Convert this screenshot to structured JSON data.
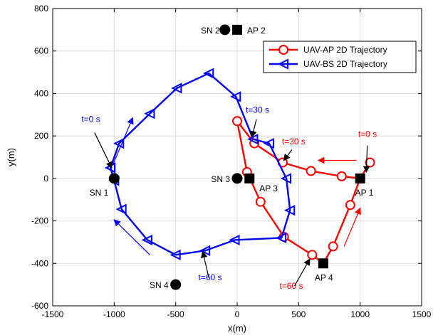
{
  "chart_data": {
    "type": "line",
    "title": "",
    "xlabel": "x(m)",
    "ylabel": "y(m)",
    "xlim": [
      -1500,
      1500
    ],
    "ylim": [
      -600,
      800
    ],
    "xticks": [
      -1500,
      -1000,
      -500,
      0,
      500,
      1000,
      1500
    ],
    "yticks": [
      -600,
      -400,
      -200,
      0,
      200,
      400,
      600,
      800
    ],
    "grid": true,
    "legend_position": "top-right",
    "series": [
      {
        "name": "UAV-AP 2D Trajectory",
        "color": "#ff0000",
        "marker": "circle",
        "x": [
          1000,
          1080,
          1000,
          850,
          600,
          370,
          140,
          0,
          80,
          190,
          380,
          610,
          700,
          780,
          920,
          1000
        ],
        "y": [
          0,
          75,
          0,
          10,
          35,
          75,
          165,
          270,
          30,
          -110,
          -275,
          -360,
          -400,
          -320,
          -125,
          0
        ]
      },
      {
        "name": "UAV-BS 2D Trajectory",
        "color": "#0000ff",
        "marker": "left-triangle",
        "x": [
          -1030,
          -960,
          -710,
          -490,
          -230,
          -10,
          130,
          260,
          400,
          430,
          360,
          -20,
          -260,
          -500,
          -730,
          -940,
          -1000,
          -1030
        ],
        "y": [
          50,
          165,
          305,
          425,
          495,
          385,
          185,
          165,
          0,
          -150,
          -280,
          -290,
          -340,
          -360,
          -290,
          -145,
          -10,
          50
        ]
      }
    ],
    "points": [
      {
        "label": "SN 1",
        "x": -1000,
        "y": 0
      },
      {
        "label": "SN 2",
        "x": -100,
        "y": 700
      },
      {
        "label": "SN 3",
        "x": 0,
        "y": 0
      },
      {
        "label": "SN 4",
        "x": -500,
        "y": -500
      }
    ],
    "access_points": [
      {
        "label": "AP 1",
        "x": 1000,
        "y": 0
      },
      {
        "label": "AP 2",
        "x": 0,
        "y": 700
      },
      {
        "label": "AP 3",
        "x": 100,
        "y": 0
      },
      {
        "label": "AP 4",
        "x": 700,
        "y": -400
      }
    ],
    "annotations": [
      {
        "text": "t=0 s",
        "color": "#ff0000",
        "x": 1060,
        "y": 195,
        "tx": 1050,
        "ty": 30
      },
      {
        "text": "t=30 s",
        "color": "#ff0000",
        "x": 460,
        "y": 160,
        "tx": 380,
        "ty": 85
      },
      {
        "text": "t=60 s",
        "color": "#ff0000",
        "x": 440,
        "y": -520,
        "tx": 590,
        "ty": -380
      },
      {
        "text": "t=0 s",
        "color": "#0000ff",
        "x": -1190,
        "y": 265,
        "tx": -1020,
        "ty": 50
      },
      {
        "text": "t=30 s",
        "color": "#0000ff",
        "x": 165,
        "y": 310,
        "tx": 120,
        "ty": 195
      },
      {
        "text": "t=60 s",
        "color": "#0000ff",
        "x": -220,
        "y": -480,
        "tx": -280,
        "ty": -345
      }
    ],
    "direction_arrows": [
      {
        "color": "#0000ff",
        "x1": -1010,
        "y1": 65,
        "x2": -850,
        "y2": 285
      },
      {
        "color": "#0000ff",
        "x1": -710,
        "y1": -360,
        "x2": -1000,
        "y2": -195
      },
      {
        "color": "#ff0000",
        "x1": 970,
        "y1": 85,
        "x2": 660,
        "y2": 85
      },
      {
        "color": "#ff0000",
        "x1": 870,
        "y1": -320,
        "x2": 1000,
        "y2": -140
      }
    ]
  }
}
